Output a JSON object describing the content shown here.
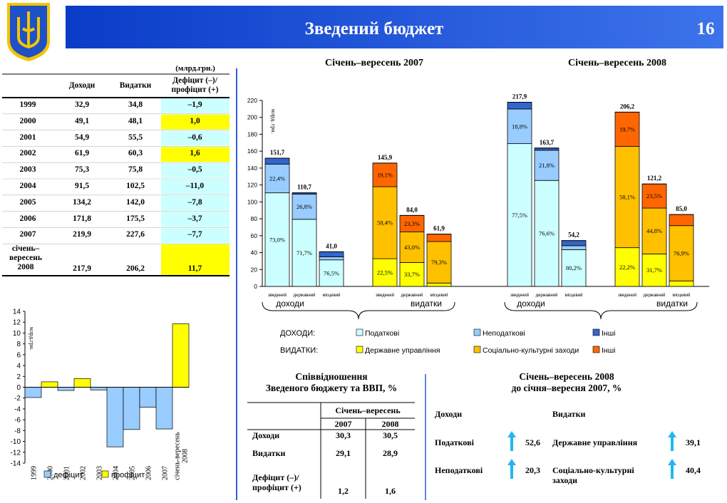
{
  "header": {
    "title": "Зведений бюджет",
    "page": "16"
  },
  "table": {
    "unit": "(млрд.грн.)",
    "columns": [
      "Доходи",
      "Видатки",
      "Дефіцит (–)/\nпрофіцит (+)"
    ],
    "rows": [
      [
        "1999",
        "32,9",
        "34,8",
        "–1,9"
      ],
      [
        "2000",
        "49,1",
        "48,1",
        "1,0"
      ],
      [
        "2001",
        "54,9",
        "55,5",
        "–0,6"
      ],
      [
        "2002",
        "61,9",
        "60,3",
        "1,6"
      ],
      [
        "2003",
        "75,3",
        "75,8",
        "–0,5"
      ],
      [
        "2004",
        "91,5",
        "102,5",
        "–11,0"
      ],
      [
        "2005",
        "134,2",
        "142,0",
        "–7,8"
      ],
      [
        "2006",
        "171,8",
        "175,5",
        "–3,7"
      ],
      [
        "2007",
        "219,9",
        "227,6",
        "–7,7"
      ],
      [
        "січень–\nвересень\n2008",
        "217,9",
        "206,2",
        "11,7"
      ]
    ]
  },
  "chart_data": [
    {
      "type": "stacked_bar",
      "periods": [
        {
          "title": "Січень–вересень 2007",
          "groups": [
            "доходи",
            "видатки"
          ]
        },
        {
          "title": "Січень–вересень 2008",
          "groups": [
            "доходи",
            "видатки"
          ]
        }
      ],
      "y_label": "млрд. грн.",
      "categories": [
        "зведений",
        "державний",
        "місцевий",
        "зведений",
        "державний",
        "місцевий",
        "зведений",
        "державний",
        "місцевий",
        "зведений",
        "державний",
        "місцевий"
      ],
      "series": [
        {
          "name": "Податкові",
          "color": "#ccffff",
          "values": [
            110.7,
            79.4,
            31.4,
            null,
            null,
            null,
            168.9,
            125.4,
            43.5,
            null,
            null,
            null
          ],
          "share_labels": [
            "73,0%",
            "71,7%",
            "76,5%",
            null,
            null,
            null,
            "77,5%",
            "76,6%",
            "80,2%",
            null,
            null,
            null
          ]
        },
        {
          "name": "Неподаткові",
          "color": "#99ccff",
          "values": [
            34.0,
            29.7,
            3.6,
            null,
            null,
            null,
            41.0,
            35.7,
            4.7,
            null,
            null,
            null
          ],
          "share_labels": [
            "22,4%",
            "26,8%",
            null,
            null,
            null,
            null,
            "18,8%",
            "21,8%",
            null,
            null,
            null,
            null
          ]
        },
        {
          "name": "Інші",
          "color": "#3366cc",
          "values": [
            7.0,
            1.6,
            6.0,
            null,
            null,
            null,
            8.0,
            2.6,
            6.0,
            null,
            null,
            null
          ]
        },
        {
          "name": "Державне управління",
          "color": "#ffff00",
          "values": [
            null,
            null,
            null,
            32.8,
            28.3,
            4.0,
            null,
            null,
            null,
            45.8,
            38.4,
            6.5
          ],
          "share_labels": [
            null,
            null,
            null,
            "22,5%",
            "33,7%",
            null,
            null,
            null,
            null,
            "22,2%",
            "31,7%",
            null
          ]
        },
        {
          "name": "Соціально-культурні заходи",
          "color": "#ffc000",
          "values": [
            null,
            null,
            null,
            85.2,
            36.1,
            49.1,
            null,
            null,
            null,
            119.8,
            54.3,
            65.4
          ],
          "share_labels": [
            null,
            null,
            null,
            "58,4%",
            "43,0%",
            "79,3%",
            null,
            null,
            null,
            "58,1%",
            "44,8%",
            "76,9%"
          ]
        },
        {
          "name": "Інші",
          "color": "#ff6600",
          "values": [
            null,
            null,
            null,
            27.9,
            19.6,
            8.8,
            null,
            null,
            null,
            40.6,
            28.5,
            13.1
          ],
          "share_labels": [
            null,
            null,
            null,
            "19,1%",
            "23,3%",
            null,
            null,
            null,
            null,
            "19,7%",
            "23,5%",
            null
          ]
        }
      ],
      "totals": [
        151.7,
        110.7,
        41.0,
        145.9,
        84.0,
        61.9,
        217.9,
        163.7,
        54.2,
        206.2,
        121.2,
        85.0
      ],
      "total_labels": [
        "151,7",
        "110,7",
        "41,0",
        "145,9",
        "84,0",
        "61,9",
        "217,9",
        "163,7",
        "54,2",
        "206,2",
        "121,2",
        "85,0"
      ],
      "ylim": [
        0,
        220
      ],
      "yticks": [
        0,
        20,
        40,
        60,
        80,
        100,
        120,
        140,
        160,
        180,
        200,
        220
      ],
      "grid": false,
      "legend_rows": [
        "ДОХОДИ:",
        "ВИДАТКИ:"
      ]
    },
    {
      "type": "bar",
      "y_label": "млрд.грн.",
      "categories": [
        "1999",
        "2000",
        "2001",
        "2002",
        "2003",
        "2004",
        "2005",
        "2006",
        "2007",
        "січень-вересень\n2008"
      ],
      "values": [
        -1.9,
        1.0,
        -0.6,
        1.6,
        -0.5,
        -11.0,
        -7.8,
        -3.7,
        -7.7,
        11.7
      ],
      "ylim": [
        -14,
        14
      ],
      "yticks": [
        -14,
        -12,
        -10,
        -8,
        -6,
        -4,
        -2,
        0,
        2,
        4,
        6,
        8,
        10,
        12,
        14
      ],
      "legend": [
        {
          "name": "дефіцит",
          "color": "#99ccff"
        },
        {
          "name": "профіцит",
          "color": "#ffff00"
        }
      ]
    }
  ],
  "gdp": {
    "title": "Співвідношення\nЗведеного бюджету та ВВП, %",
    "period": "Січень–вересень",
    "years": [
      "2007",
      "2008"
    ],
    "rows": [
      {
        "label": "Доходи",
        "values": [
          "30,3",
          "30,5"
        ]
      },
      {
        "label": "Видатки",
        "values": [
          "29,1",
          "28,9"
        ]
      },
      {
        "label": "Дефіцит (–)/\nпрофіцит (+)",
        "values": [
          "1,2",
          "1,6"
        ]
      }
    ]
  },
  "growth": {
    "title": "Січень–вересень 2008\nдо січня–вересня 2007, %",
    "columns": [
      "Доходи",
      "Видатки"
    ],
    "rows": [
      [
        {
          "label": "Податкові",
          "value": "52,6"
        },
        {
          "label": "Державне управління",
          "value": "39,1"
        }
      ],
      [
        {
          "label": "Неподаткові",
          "value": "20,3"
        },
        {
          "label": "Соціально-культурні\nзаходи",
          "value": "40,4"
        }
      ]
    ]
  }
}
